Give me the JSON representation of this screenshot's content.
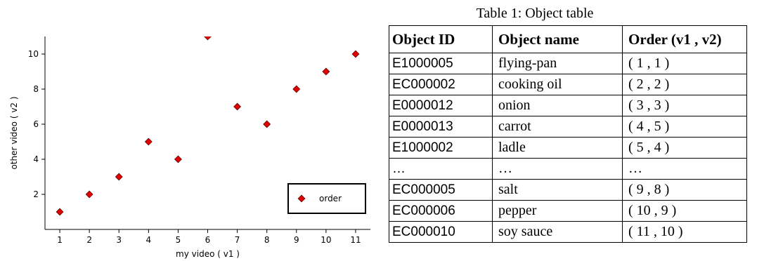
{
  "chart_data": {
    "type": "scatter",
    "title": "",
    "xlabel": "my video ( v1 )",
    "ylabel": "other video ( v2 )",
    "xlim": [
      0.5,
      11.5
    ],
    "ylim": [
      0,
      11
    ],
    "x_ticks": [
      1,
      2,
      3,
      4,
      5,
      6,
      7,
      8,
      9,
      10,
      11
    ],
    "y_ticks": [
      2,
      4,
      6,
      8,
      10
    ],
    "grid": false,
    "legend_position": "bottom-right",
    "series": [
      {
        "name": "order",
        "color": "#e00000",
        "marker": "diamond",
        "points": [
          {
            "x": 1,
            "y": 1
          },
          {
            "x": 2,
            "y": 2
          },
          {
            "x": 3,
            "y": 3
          },
          {
            "x": 4,
            "y": 5
          },
          {
            "x": 5,
            "y": 4
          },
          {
            "x": 6,
            "y": 11
          },
          {
            "x": 7,
            "y": 7
          },
          {
            "x": 8,
            "y": 6
          },
          {
            "x": 9,
            "y": 8
          },
          {
            "x": 10,
            "y": 9
          },
          {
            "x": 11,
            "y": 10
          }
        ]
      }
    ]
  },
  "table": {
    "caption": "Table 1: Object table",
    "headers": [
      "Object ID",
      "Object name",
      "Order (v1 , v2)"
    ],
    "rows": [
      [
        "E1000005",
        "flying-pan",
        "( 1 , 1 )"
      ],
      [
        "EC000002",
        "cooking oil",
        "( 2 , 2 )"
      ],
      [
        "E0000012",
        "onion",
        "( 3 , 3 )"
      ],
      [
        "E0000013",
        "carrot",
        "( 4 , 5 )"
      ],
      [
        "E1000002",
        "ladle",
        "( 5 , 4 )"
      ],
      [
        "…",
        "…",
        "…"
      ],
      [
        "EC000005",
        "salt",
        "( 9 , 8 )"
      ],
      [
        "EC000006",
        "pepper",
        "( 10 , 9 )"
      ],
      [
        "EC000010",
        "soy sauce",
        "( 11 , 10 )"
      ]
    ]
  }
}
